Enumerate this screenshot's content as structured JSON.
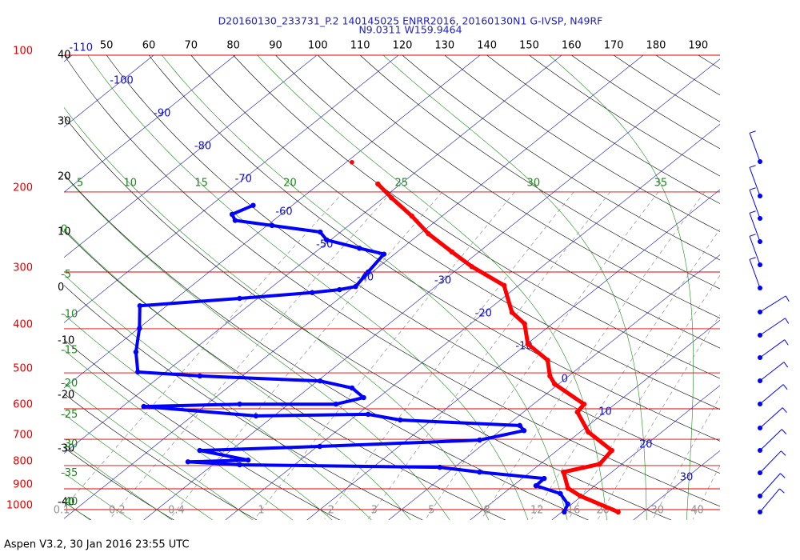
{
  "chart_data": {
    "type": "skew-t",
    "title": "D20160130_233731_P.2 140145025 ENRR2016, 20160130N1 G-IVSP, N49RF",
    "subtitle": "N9.0311 W159.9464",
    "annotation": "Aspen V3.2, 30 Jan 2016  23:55 UTC",
    "ylim": [
      1000,
      100
    ],
    "log_scale": true,
    "yticks": [
      100,
      200,
      300,
      400,
      500,
      600,
      700,
      800,
      900,
      1000
    ],
    "pressure_color": "#e00000",
    "isotherm_labels": [
      -110,
      -100,
      -90,
      -80,
      -70,
      -60,
      -50,
      -40,
      -30,
      -20,
      -10,
      0,
      10,
      20,
      30
    ],
    "isotherm_color": "#1010d0",
    "dry_adiabat_left_labels": [
      40,
      30,
      20,
      10,
      0,
      -10,
      -20,
      -30,
      -40
    ],
    "dry_adiabat_top_labels": [
      50,
      60,
      70,
      80,
      90,
      100,
      110,
      120,
      130,
      140,
      150,
      160,
      170,
      180,
      190
    ],
    "dry_adiabat_color": "#000000",
    "moist_adiabat_top_labels": [
      5,
      10,
      15,
      20,
      25,
      30,
      35
    ],
    "moist_adiabat_left_labels": [
      0,
      -5,
      -10,
      -15,
      -20,
      -25,
      -30,
      -35,
      -40
    ],
    "moist_adiabat_color": "#1a8a1a",
    "mixing_ratio_labels": [
      0.1,
      0.2,
      0.4,
      1,
      2,
      3,
      5,
      8,
      12,
      16,
      20,
      30,
      40
    ],
    "mixing_ratio_color": "#909090",
    "series": [
      {
        "color": "#ff0000",
        "x": [
          -52.8,
          -49.0,
          -43.7,
          -39.0,
          -33.3,
          -28.6,
          -21.8,
          -16.7,
          -13.4,
          -9.9,
          -5.0,
          -2.3,
          -0.5,
          6.2,
          6.6,
          11.0,
          16.7,
          17.3,
          14.1,
          17.1,
          19.8,
          26.9
        ],
        "values": [
          192,
          206,
          226,
          247,
          271,
          292,
          321,
          368,
          390,
          432,
          469,
          508,
          529,
          586,
          610,
          675,
          741,
          794,
          827,
          897,
          933,
          1012
        ]
      },
      {
        "color": "#0000ff",
        "x": [
          -64.8,
          -66.0,
          -64.7,
          -59.4,
          -52.5,
          -50.5,
          -45.2,
          -41.3,
          -40.5,
          -39.8,
          -41.3,
          -44.2,
          -52.2,
          -63.3,
          -59.9,
          -56.7,
          -53.4,
          -45.2,
          -29.7,
          -24.7,
          -21.8,
          -24.2,
          -36.0,
          -47.4,
          -32.2,
          -18.7,
          -13.9,
          1.6,
          2.9,
          -1.1,
          -19.7,
          -33.8,
          -26.4,
          -33.5,
          -26.7,
          -1.8,
          3.8,
          12.7,
          12.8,
          17.0,
          19.5,
          20.3
        ],
        "values": [
          214,
          224,
          231,
          237,
          245,
          255,
          266,
          274,
          300,
          323,
          328,
          333,
          343,
          356,
          399,
          450,
          498,
          508,
          521,
          540,
          567,
          586,
          586,
          593,
          622,
          617,
          635,
          653,
          670,
          703,
          726,
          741,
          778,
          785,
          797,
          807,
          827,
          854,
          886,
          922,
          972,
          1012
        ]
      },
      {
        "color": "#ff0000",
        "x": [
          -59.3
        ],
        "values": [
          172
        ]
      }
    ]
  }
}
